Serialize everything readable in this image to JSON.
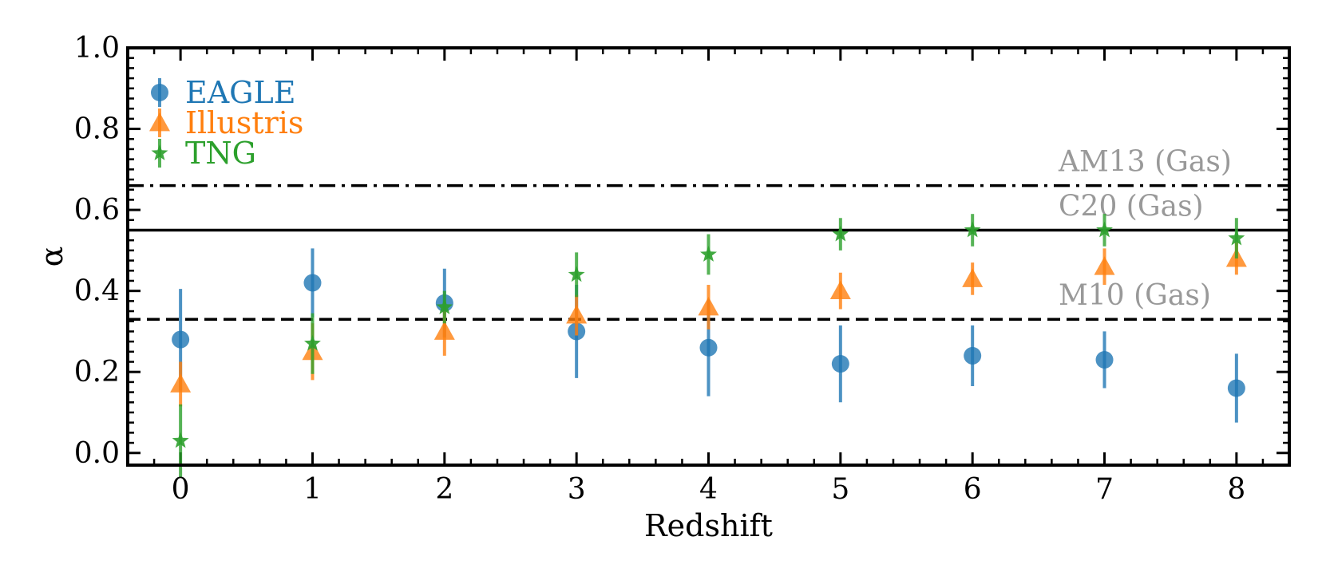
{
  "chart_data": {
    "type": "scatter",
    "title": "",
    "xlabel": "Redshift",
    "ylabel": "α",
    "xlim": [
      -0.4,
      8.4
    ],
    "ylim": [
      -0.03,
      1.0
    ],
    "xticks": [
      0,
      1,
      2,
      3,
      4,
      5,
      6,
      7,
      8
    ],
    "xtick_labels": [
      "0",
      "1",
      "2",
      "3",
      "4",
      "5",
      "6",
      "7",
      "8"
    ],
    "yticks": [
      0.0,
      0.2,
      0.4,
      0.6,
      0.8,
      1.0
    ],
    "ytick_labels": [
      "0.0",
      "0.2",
      "0.4",
      "0.6",
      "0.8",
      "1.0"
    ],
    "grid": false,
    "legend_position": "top-left",
    "series": [
      {
        "name": "EAGLE",
        "marker": "circle",
        "color": "#1f77b4",
        "x": [
          0,
          1,
          2,
          3,
          4,
          5,
          6,
          7,
          8
        ],
        "y": [
          0.28,
          0.42,
          0.37,
          0.3,
          0.26,
          0.22,
          0.24,
          0.23,
          0.16
        ],
        "yerr": [
          0.125,
          0.085,
          0.085,
          0.115,
          0.12,
          0.095,
          0.075,
          0.07,
          0.085
        ]
      },
      {
        "name": "Illustris",
        "marker": "triangle",
        "color": "#ff7f0e",
        "x": [
          0,
          1,
          2,
          3,
          4,
          5,
          6,
          7,
          8
        ],
        "y": [
          0.17,
          0.25,
          0.3,
          0.34,
          0.36,
          0.4,
          0.43,
          0.46,
          0.48
        ],
        "yerr": [
          0.055,
          0.07,
          0.06,
          0.05,
          0.055,
          0.045,
          0.04,
          0.045,
          0.04
        ]
      },
      {
        "name": "TNG",
        "marker": "star",
        "color": "#2ca02c",
        "x": [
          0,
          1,
          2,
          3,
          4,
          5,
          6,
          7,
          8
        ],
        "y": [
          0.03,
          0.27,
          0.36,
          0.44,
          0.49,
          0.54,
          0.55,
          0.55,
          0.53
        ],
        "yerr": [
          0.09,
          0.075,
          0.04,
          0.055,
          0.05,
          0.04,
          0.04,
          0.04,
          0.05
        ]
      }
    ],
    "reference_lines": [
      {
        "label": "AM13 (Gas)",
        "y": 0.66,
        "style": "dashdot",
        "color": "#000000"
      },
      {
        "label": "C20 (Gas)",
        "y": 0.55,
        "style": "solid",
        "color": "#000000"
      },
      {
        "label": "M10 (Gas)",
        "y": 0.33,
        "style": "dashed",
        "color": "#000000"
      }
    ],
    "reference_label_color": "#999999"
  }
}
